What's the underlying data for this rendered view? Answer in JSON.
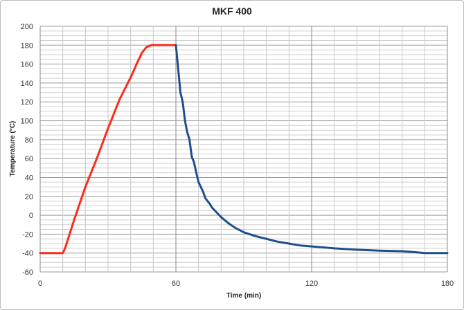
{
  "chart_data": {
    "type": "line",
    "title": "MKF 400",
    "xlabel": "Time (min)",
    "ylabel": "Temperature (°C)",
    "xlim": [
      0,
      180
    ],
    "ylim": [
      -60,
      200
    ],
    "x_ticks": [
      0,
      60,
      120,
      180
    ],
    "y_ticks": [
      -60,
      -40,
      -20,
      0,
      20,
      40,
      60,
      80,
      100,
      120,
      140,
      160,
      180,
      200
    ],
    "x_minor_step": 10,
    "y_minor_step": 5,
    "grid": true,
    "legend": "none",
    "series": [
      {
        "color": "#ff2a1a",
        "points": [
          [
            0,
            -40
          ],
          [
            10,
            -40
          ],
          [
            11,
            -35
          ],
          [
            13,
            -20
          ],
          [
            15,
            -5
          ],
          [
            20,
            30
          ],
          [
            25,
            60
          ],
          [
            30,
            92
          ],
          [
            35,
            122
          ],
          [
            40,
            146
          ],
          [
            43,
            162
          ],
          [
            45,
            172
          ],
          [
            47,
            178
          ],
          [
            49,
            180
          ],
          [
            60,
            180
          ]
        ]
      },
      {
        "color": "#1f4e8c",
        "points": [
          [
            60,
            180
          ],
          [
            61,
            155
          ],
          [
            62,
            130
          ],
          [
            63,
            120
          ],
          [
            64,
            100
          ],
          [
            65,
            88
          ],
          [
            66,
            80
          ],
          [
            67,
            62
          ],
          [
            68,
            56
          ],
          [
            69,
            45
          ],
          [
            70,
            35
          ],
          [
            72,
            25
          ],
          [
            73,
            18
          ],
          [
            75,
            12
          ],
          [
            76,
            8
          ],
          [
            78,
            3
          ],
          [
            80,
            -2
          ],
          [
            83,
            -8
          ],
          [
            86,
            -13
          ],
          [
            90,
            -18
          ],
          [
            95,
            -22
          ],
          [
            100,
            -25
          ],
          [
            105,
            -28
          ],
          [
            110,
            -30
          ],
          [
            115,
            -32
          ],
          [
            120,
            -33
          ],
          [
            125,
            -34
          ],
          [
            130,
            -35
          ],
          [
            140,
            -36.5
          ],
          [
            150,
            -37.5
          ],
          [
            160,
            -38
          ],
          [
            165,
            -39
          ],
          [
            170,
            -40
          ],
          [
            180,
            -40
          ]
        ]
      }
    ]
  }
}
